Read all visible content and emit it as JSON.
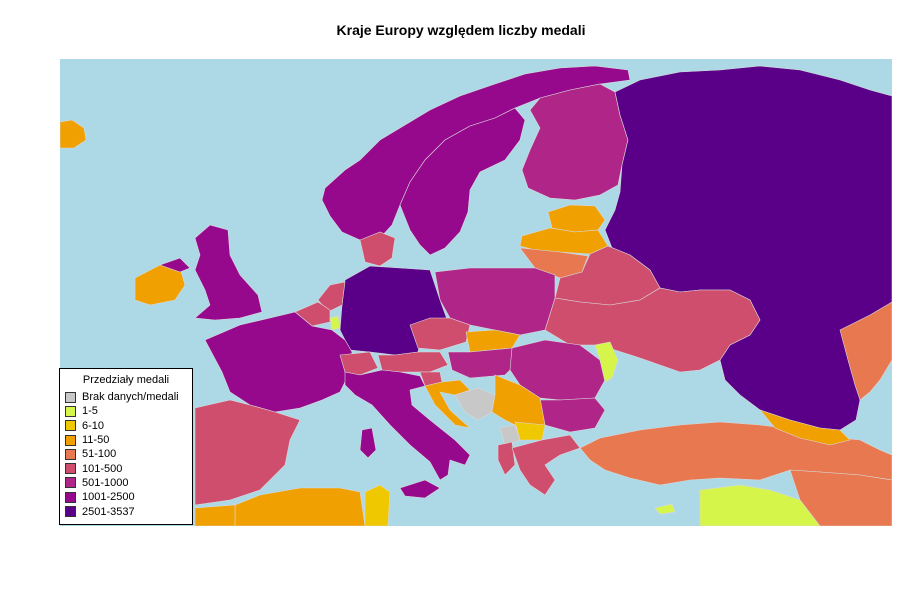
{
  "title": "Kraje Europy względem liczby medali",
  "colors": {
    "sea": "#add8e6",
    "nodata": "#c8c8c8",
    "c1": "#d6f54a",
    "c2": "#f0c800",
    "c3": "#f0a000",
    "c4": "#e87850",
    "c5": "#cf4e6e",
    "c6": "#b02688",
    "c7": "#96088c",
    "c8": "#5a0088"
  },
  "legend": {
    "title": "Przedziały medali",
    "items": [
      {
        "label": "Brak danych/medali",
        "color": "#c8c8c8"
      },
      {
        "label": "1-5",
        "color": "#d6f54a"
      },
      {
        "label": "6-10",
        "color": "#f0c800"
      },
      {
        "label": "11-50",
        "color": "#f0a000"
      },
      {
        "label": "51-100",
        "color": "#e87850"
      },
      {
        "label": "101-500",
        "color": "#cf4e6e"
      },
      {
        "label": "501-1000",
        "color": "#b02688"
      },
      {
        "label": "1001-2500",
        "color": "#96088c"
      },
      {
        "label": "2501-3537",
        "color": "#5a0088"
      }
    ]
  }
}
